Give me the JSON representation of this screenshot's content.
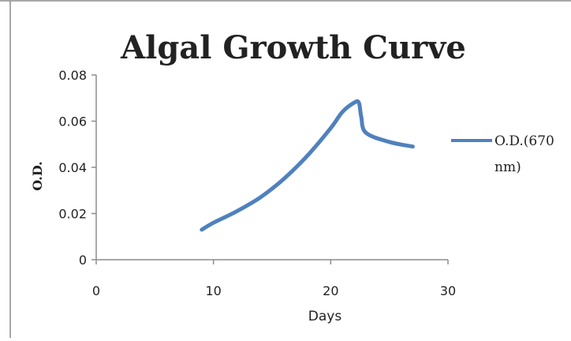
{
  "chart_data": {
    "type": "line",
    "title": "Algal Growth Curve",
    "xlabel": "Days",
    "ylabel": "O.D.",
    "xlim": [
      0,
      30
    ],
    "ylim": [
      0,
      0.08
    ],
    "x_ticks": [
      "0",
      "10",
      "20",
      "30"
    ],
    "y_ticks": [
      "0",
      "0.02",
      "0.04",
      "0.06",
      "0.08"
    ],
    "grid": false,
    "legend_position": "right",
    "series": [
      {
        "name": "O.D.(670 nm)",
        "color": "#4f81bd",
        "x": [
          9,
          10,
          12,
          14,
          16,
          18,
          20,
          21,
          22,
          22.4,
          22.6,
          23,
          25,
          27
        ],
        "y": [
          0.013,
          0.016,
          0.021,
          0.027,
          0.035,
          0.045,
          0.057,
          0.064,
          0.068,
          0.068,
          0.062,
          0.055,
          0.051,
          0.049
        ]
      }
    ]
  },
  "legend": {
    "line1": "O.D.(670",
    "line2": "nm)"
  }
}
